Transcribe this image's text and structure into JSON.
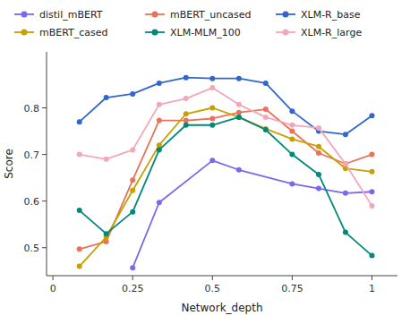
{
  "chart_data": {
    "type": "line",
    "x_label": "Network_depth",
    "y_label": "Score",
    "xlim": [
      -0.02,
      1.08
    ],
    "ylim": [
      0.44,
      0.92
    ],
    "xticks": [
      0,
      0.25,
      0.5,
      0.75,
      1
    ],
    "yticks": [
      0.5,
      0.6,
      0.7,
      0.8
    ],
    "grid": false,
    "legend": "top",
    "marker": "circle",
    "series": [
      {
        "name": "distil_mBERT",
        "color": "#7B68EE",
        "x": [
          0.25,
          0.333,
          0.5,
          0.583,
          0.75,
          0.833,
          0.917,
          1.0
        ],
        "values": [
          0.457,
          0.597,
          0.687,
          0.667,
          0.637,
          0.627,
          0.617,
          0.62
        ]
      },
      {
        "name": "mBERT_uncased",
        "color": "#E8735A",
        "x": [
          0.083,
          0.167,
          0.25,
          0.333,
          0.417,
          0.5,
          0.583,
          0.667,
          0.75,
          0.833,
          0.917,
          1.0
        ],
        "values": [
          0.497,
          0.513,
          0.645,
          0.773,
          0.773,
          0.777,
          0.79,
          0.797,
          0.75,
          0.703,
          0.68,
          0.7
        ]
      },
      {
        "name": "XLM-R_base",
        "color": "#3366CC",
        "x": [
          0.083,
          0.167,
          0.25,
          0.333,
          0.417,
          0.5,
          0.583,
          0.667,
          0.75,
          0.833,
          0.917,
          1.0
        ],
        "values": [
          0.77,
          0.822,
          0.83,
          0.853,
          0.865,
          0.863,
          0.863,
          0.853,
          0.793,
          0.75,
          0.743,
          0.783
        ]
      },
      {
        "name": "mBERT_cased",
        "color": "#C8A000",
        "x": [
          0.083,
          0.167,
          0.25,
          0.333,
          0.417,
          0.5,
          0.583,
          0.667,
          0.75,
          0.833,
          0.917,
          1.0
        ],
        "values": [
          0.46,
          0.523,
          0.623,
          0.72,
          0.787,
          0.8,
          0.78,
          0.755,
          0.733,
          0.717,
          0.67,
          0.663
        ]
      },
      {
        "name": "XLM-MLM_100",
        "color": "#00897B",
        "x": [
          0.083,
          0.167,
          0.25,
          0.333,
          0.417,
          0.5,
          0.583,
          0.667,
          0.75,
          0.833,
          0.917,
          1.0
        ],
        "values": [
          0.58,
          0.53,
          0.577,
          0.71,
          0.763,
          0.763,
          0.78,
          0.753,
          0.7,
          0.657,
          0.533,
          0.483
        ]
      },
      {
        "name": "XLM-R_large",
        "color": "#F4A7B9",
        "x": [
          0.083,
          0.167,
          0.25,
          0.333,
          0.417,
          0.5,
          0.583,
          0.667,
          0.75,
          0.833,
          0.917,
          1.0
        ],
        "values": [
          0.7,
          0.69,
          0.71,
          0.807,
          0.82,
          0.843,
          0.807,
          0.78,
          0.763,
          0.757,
          0.68,
          0.59
        ]
      }
    ]
  }
}
